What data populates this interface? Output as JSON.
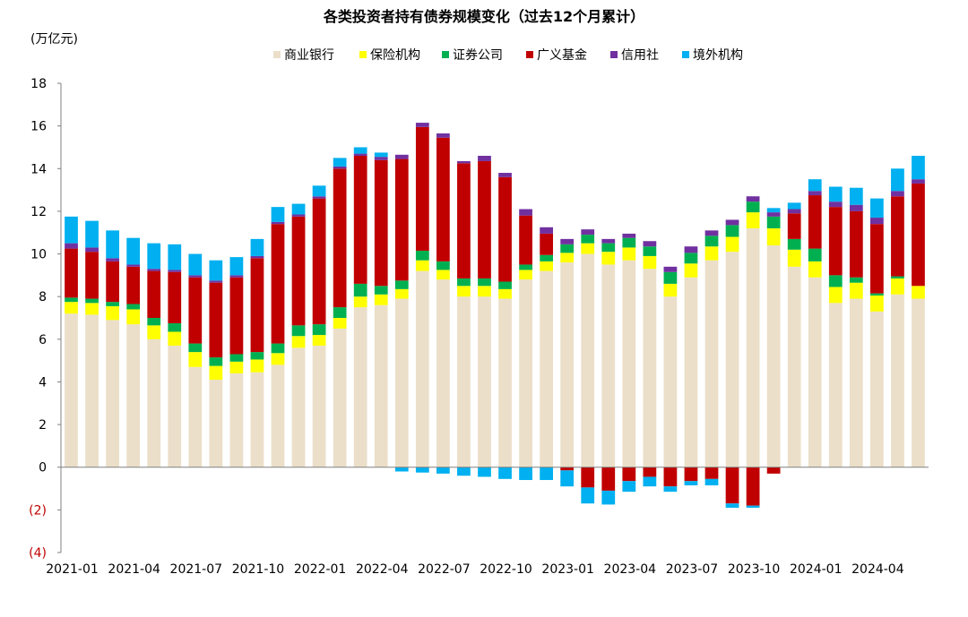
{
  "chart_data": {
    "type": "bar",
    "stacked": true,
    "title": "各类投资者持有债券规模变化（过去12个月累计）",
    "unit_label": "(万亿元)",
    "ylim": [
      -4,
      18
    ],
    "yticks": [
      -4,
      -2,
      0,
      2,
      4,
      6,
      8,
      10,
      12,
      14,
      16,
      18
    ],
    "ytick_labels": [
      "(4)",
      "(2)",
      "0",
      "2",
      "4",
      "6",
      "8",
      "10",
      "12",
      "14",
      "16",
      "18"
    ],
    "negative_tick_color": "#c00000",
    "grid": false,
    "legend_position": "top",
    "categories": [
      "2021-01",
      "2021-02",
      "2021-03",
      "2021-04",
      "2021-05",
      "2021-06",
      "2021-07",
      "2021-08",
      "2021-09",
      "2021-10",
      "2021-11",
      "2021-12",
      "2022-01",
      "2022-02",
      "2022-03",
      "2022-04",
      "2022-05",
      "2022-06",
      "2022-07",
      "2022-08",
      "2022-09",
      "2022-10",
      "2022-11",
      "2022-12",
      "2023-01",
      "2023-02",
      "2023-03",
      "2023-04",
      "2023-05",
      "2023-06",
      "2023-07",
      "2023-08",
      "2023-09",
      "2023-10",
      "2023-11",
      "2023-12",
      "2024-01",
      "2024-02",
      "2024-03",
      "2024-04",
      "2024-05",
      "2024-06"
    ],
    "x_tick_labels": [
      "2021-01",
      "2021-04",
      "2021-07",
      "2021-10",
      "2022-01",
      "2022-04",
      "2022-07",
      "2022-10",
      "2023-01",
      "2023-04",
      "2023-07",
      "2023-10",
      "2024-01",
      "2024-04"
    ],
    "series": [
      {
        "name": "商业银行",
        "color": "#ebdfc9",
        "values": [
          7.2,
          7.15,
          6.9,
          6.7,
          6.0,
          5.7,
          4.7,
          4.1,
          4.4,
          4.45,
          4.8,
          5.6,
          5.7,
          6.5,
          7.5,
          7.6,
          7.9,
          9.2,
          8.8,
          8.0,
          8.0,
          7.9,
          8.8,
          9.2,
          9.6,
          10.0,
          9.5,
          9.7,
          9.3,
          8.0,
          8.9,
          9.7,
          10.1,
          11.2,
          10.4,
          9.4,
          8.9,
          7.7,
          7.9,
          7.3,
          8.1,
          7.9
        ]
      },
      {
        "name": "保险机构",
        "color": "#ffff00",
        "values": [
          0.55,
          0.55,
          0.65,
          0.7,
          0.65,
          0.65,
          0.7,
          0.65,
          0.55,
          0.6,
          0.55,
          0.55,
          0.5,
          0.5,
          0.5,
          0.5,
          0.45,
          0.5,
          0.45,
          0.5,
          0.5,
          0.45,
          0.45,
          0.45,
          0.45,
          0.5,
          0.6,
          0.6,
          0.6,
          0.6,
          0.65,
          0.65,
          0.7,
          0.75,
          0.8,
          0.8,
          0.75,
          0.75,
          0.75,
          0.75,
          0.75,
          0.6
        ]
      },
      {
        "name": "证券公司",
        "color": "#00b050",
        "values": [
          0.2,
          0.2,
          0.2,
          0.25,
          0.35,
          0.4,
          0.4,
          0.4,
          0.35,
          0.35,
          0.45,
          0.5,
          0.5,
          0.5,
          0.6,
          0.4,
          0.4,
          0.45,
          0.4,
          0.35,
          0.35,
          0.35,
          0.25,
          0.3,
          0.4,
          0.4,
          0.4,
          0.45,
          0.45,
          0.55,
          0.5,
          0.5,
          0.55,
          0.5,
          0.55,
          0.5,
          0.6,
          0.55,
          0.25,
          0.1,
          0.1,
          0.0
        ]
      },
      {
        "name": "广义基金",
        "color": "#c00000",
        "values": [
          2.3,
          2.2,
          1.9,
          1.75,
          2.2,
          2.4,
          3.1,
          3.5,
          3.6,
          4.4,
          5.6,
          5.1,
          5.9,
          6.5,
          6.0,
          5.9,
          5.7,
          5.8,
          5.8,
          5.4,
          5.5,
          4.9,
          2.3,
          1.0,
          0.0,
          0.0,
          0.0,
          0.0,
          0.0,
          0.0,
          0.0,
          0.0,
          0.0,
          0.0,
          0.0,
          1.2,
          2.5,
          3.2,
          3.1,
          3.25,
          3.75,
          4.8
        ]
      },
      {
        "name": "信用社",
        "color": "#7030a0",
        "values": [
          0.25,
          0.2,
          0.15,
          0.1,
          0.1,
          0.1,
          0.1,
          0.1,
          0.1,
          0.1,
          0.1,
          0.1,
          0.1,
          0.1,
          0.1,
          0.15,
          0.2,
          0.2,
          0.2,
          0.1,
          0.25,
          0.2,
          0.3,
          0.3,
          0.25,
          0.25,
          0.2,
          0.2,
          0.25,
          0.25,
          0.3,
          0.25,
          0.25,
          0.25,
          0.2,
          0.2,
          0.2,
          0.25,
          0.3,
          0.3,
          0.25,
          0.2
        ]
      },
      {
        "name": "境外机构",
        "color": "#00b0f0",
        "values": [
          1.25,
          1.25,
          1.3,
          1.25,
          1.2,
          1.2,
          1.0,
          0.95,
          0.85,
          0.8,
          0.7,
          0.5,
          0.5,
          0.4,
          0.3,
          0.2,
          0.0,
          0.0,
          0.0,
          0.0,
          0.0,
          0.0,
          0.0,
          0.0,
          0.0,
          0.0,
          0.0,
          0.0,
          0.0,
          0.0,
          0.0,
          0.0,
          0.0,
          0.0,
          0.2,
          0.3,
          0.55,
          0.7,
          0.8,
          0.9,
          1.05,
          1.1
        ]
      }
    ],
    "negative_series": [
      {
        "name": "广义基金",
        "color": "#c00000",
        "values": [
          0,
          0,
          0,
          0,
          0,
          0,
          0,
          0,
          0,
          0,
          0,
          0,
          0,
          0,
          0,
          0,
          0,
          0,
          0,
          0,
          0,
          0,
          0,
          0,
          -0.15,
          -0.95,
          -1.1,
          -0.65,
          -0.45,
          -0.9,
          -0.65,
          -0.55,
          -1.7,
          -1.8,
          -0.3,
          0,
          0,
          0,
          0,
          0,
          0,
          0
        ]
      },
      {
        "name": "境外机构",
        "color": "#00b0f0",
        "values": [
          0,
          0,
          0,
          0,
          0,
          0,
          0,
          0,
          0,
          0,
          0,
          0,
          0,
          0,
          0,
          0,
          -0.2,
          -0.25,
          -0.3,
          -0.4,
          -0.45,
          -0.55,
          -0.6,
          -0.6,
          -0.75,
          -0.75,
          -0.65,
          -0.5,
          -0.45,
          -0.25,
          -0.2,
          -0.3,
          -0.2,
          -0.1,
          0,
          0,
          0,
          0,
          0,
          0,
          0,
          0
        ]
      }
    ]
  }
}
